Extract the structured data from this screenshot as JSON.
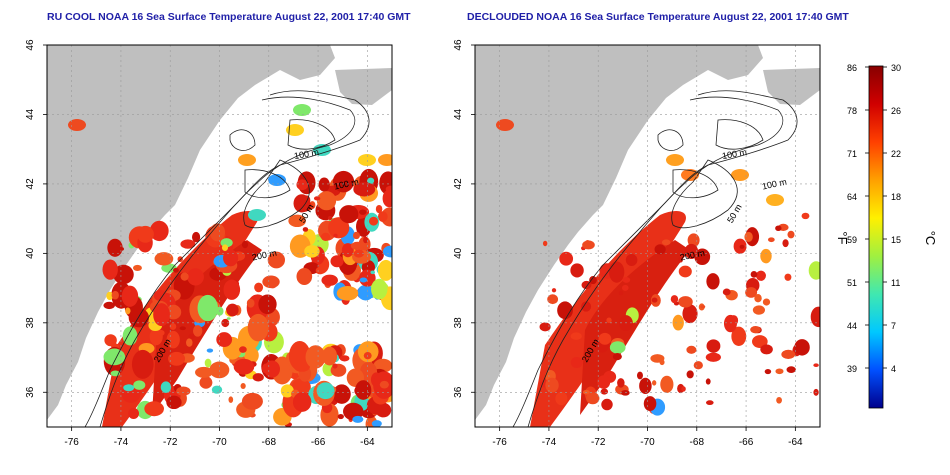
{
  "panels": [
    {
      "id": "left",
      "title": "RU COOL NOAA 16 Sea Surface Temperature August 22, 2001 17:40 GMT",
      "mode": "cloudy"
    },
    {
      "id": "right",
      "title": "DECLOUDED NOAA 16 Sea Surface Temperature August 22, 2001 17:40 GMT",
      "mode": "declouded"
    }
  ],
  "map_axes": {
    "lon_ticks": [
      "-76",
      "-74",
      "-72",
      "-70",
      "-68",
      "-66",
      "-64"
    ],
    "lat_ticks": [
      "36",
      "38",
      "40",
      "42",
      "44",
      "46"
    ],
    "lon_range": [
      -77,
      -63
    ],
    "lat_range": [
      35,
      46
    ],
    "grid": "dotted"
  },
  "contour_labels": {
    "left": [
      "100 m",
      "100 m",
      "50 m",
      "200 m",
      "200 m"
    ],
    "right": [
      "100 m",
      "100 m",
      "50 m",
      "200 m",
      "200 m"
    ]
  },
  "colorbar": {
    "left_ticks": [
      "86",
      "78",
      "71",
      "64",
      "59",
      "51",
      "44",
      "39"
    ],
    "right_ticks": [
      "30",
      "26",
      "22",
      "18",
      "15",
      "11",
      "7",
      "4"
    ],
    "left_unit": "°F",
    "right_unit": "°C",
    "colors": [
      "#00008c",
      "#0050ff",
      "#00c8ff",
      "#40e8b0",
      "#a0f040",
      "#fff000",
      "#ffa000",
      "#ff4000",
      "#d00000",
      "#880000"
    ]
  },
  "colors": {
    "land": "#bfbfbf",
    "ocean_warm": "#e83018",
    "title": "#2020a8"
  }
}
